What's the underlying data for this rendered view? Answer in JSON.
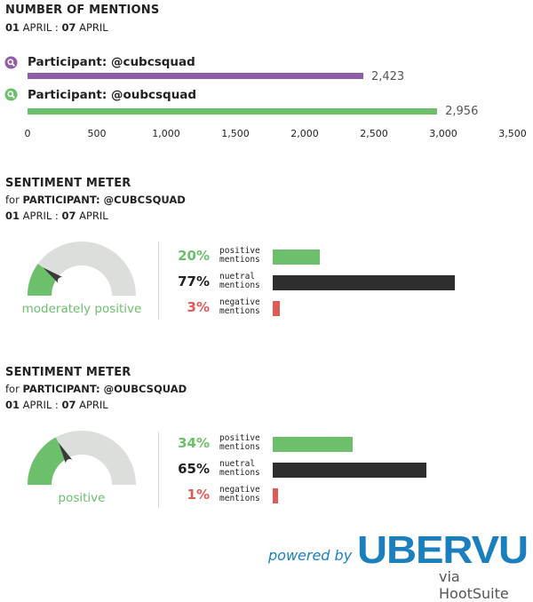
{
  "mentions": {
    "title": "NUMBER OF MENTIONS",
    "date_start": "01",
    "date_start_month": "APRIL",
    "date_sep": ":",
    "date_end": "07",
    "date_end_month": "APRIL"
  },
  "chart_data": [
    {
      "type": "bar",
      "orientation": "horizontal",
      "title": "NUMBER OF MENTIONS",
      "series": [
        {
          "name": "Participant: @cubcsquad",
          "value": 2423,
          "value_label": "2,423",
          "color": "#8e5ea8",
          "icon": "search-icon"
        },
        {
          "name": "Participant: @oubcsquad",
          "value": 2956,
          "value_label": "2,956",
          "color": "#6cc06b",
          "icon": "search-icon"
        }
      ],
      "xlim": [
        0,
        3500
      ],
      "ticks": [
        {
          "value": 0,
          "label": "0"
        },
        {
          "value": 500,
          "label": "500"
        },
        {
          "value": 1000,
          "label": "1,000"
        },
        {
          "value": 1500,
          "label": "1,500"
        },
        {
          "value": 2000,
          "label": "2,000"
        },
        {
          "value": 2500,
          "label": "2,500"
        },
        {
          "value": 3000,
          "label": "3,000"
        },
        {
          "value": 3500,
          "label": "3,500"
        }
      ],
      "grid": false
    },
    {
      "type": "bar",
      "orientation": "horizontal",
      "title": "SENTIMENT METER",
      "subtitle_prefix": "for",
      "subtitle": "PARTICIPANT: @CUBCSQUAD",
      "date_start": "01",
      "date_start_month": "APRIL",
      "date_sep": ":",
      "date_end": "07",
      "date_end_month": "APRIL",
      "gauge": {
        "level": 0.2,
        "caption": "moderately positive"
      },
      "rows": [
        {
          "pct_label": "20%",
          "value": 20,
          "line1": "positive",
          "line2": "mentions",
          "color": "#6cc06b",
          "text_color": "#6cc06b"
        },
        {
          "pct_label": "77%",
          "value": 77,
          "line1": "nuetral",
          "line2": "mentions",
          "color": "#2e2e2e",
          "text_color": "#222222"
        },
        {
          "pct_label": "3%",
          "value": 3,
          "line1": "negative",
          "line2": "mentions",
          "color": "#e05a56",
          "text_color": "#e05a56"
        }
      ]
    },
    {
      "type": "bar",
      "orientation": "horizontal",
      "title": "SENTIMENT METER",
      "subtitle_prefix": "for",
      "subtitle": "PARTICIPANT: @OUBCSQUAD",
      "date_start": "01",
      "date_start_month": "APRIL",
      "date_sep": ":",
      "date_end": "07",
      "date_end_month": "APRIL",
      "gauge": {
        "level": 0.34,
        "caption": "positive"
      },
      "rows": [
        {
          "pct_label": "34%",
          "value": 34,
          "line1": "positive",
          "line2": "mentions",
          "color": "#6cc06b",
          "text_color": "#6cc06b"
        },
        {
          "pct_label": "65%",
          "value": 65,
          "line1": "nuetral",
          "line2": "mentions",
          "color": "#2e2e2e",
          "text_color": "#222222"
        },
        {
          "pct_label": "1%",
          "value": 1,
          "line1": "negative",
          "line2": "mentions",
          "color": "#e05a56",
          "text_color": "#e05a56"
        }
      ]
    }
  ],
  "footer": {
    "powered_by": "powered by",
    "brand": "UBERVU",
    "via": "via HootSuite",
    "brand_color": "#1a7fbf"
  },
  "colors": {
    "gauge_bg": "#dcdedb",
    "positive": "#6cc06b",
    "neutral": "#2e2e2e",
    "negative": "#e05a56",
    "needle": "#3a3a3a"
  }
}
